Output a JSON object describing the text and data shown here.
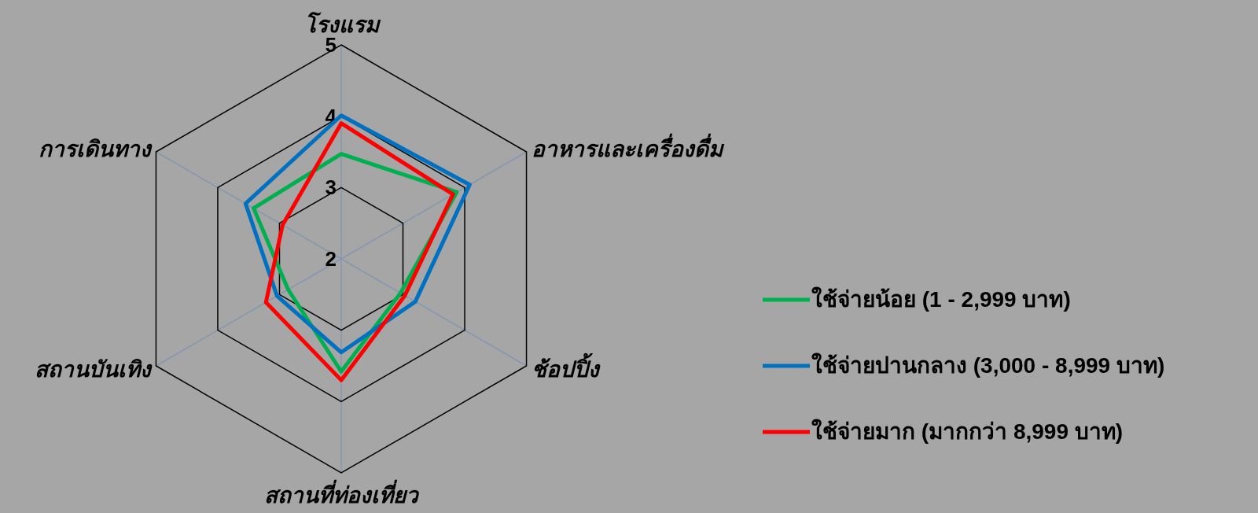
{
  "chart_data": {
    "type": "radar",
    "categories": [
      "โรงแรม",
      "อาหารและเครื่องดื่ม",
      "ช้อปปิ้ง",
      "สถานที่ท่องเที่ยว",
      "สถานบันเทิง",
      "การเดินทาง"
    ],
    "ylim": [
      2,
      5
    ],
    "yticks": [
      2,
      3,
      4,
      5
    ],
    "legend": "right",
    "series": [
      {
        "name": "ใช้จ่ายน้อย (1 - 2,999 บาท)",
        "color": "#00b050",
        "values": [
          3.47,
          3.87,
          2.96,
          3.58,
          2.86,
          3.42
        ]
      },
      {
        "name": "ใช้จ่ายปานกลาง (3,000 - 8,999 บาท)",
        "color": "#0070c0",
        "values": [
          4.01,
          4.08,
          3.2,
          3.31,
          3.04,
          3.55
        ]
      },
      {
        "name": "ใช้จ่ายมาก (มากกว่า 8,999 บาท)",
        "color": "#ff0000",
        "values": [
          3.9,
          3.81,
          3.03,
          3.7,
          3.22,
          2.95
        ]
      }
    ]
  }
}
